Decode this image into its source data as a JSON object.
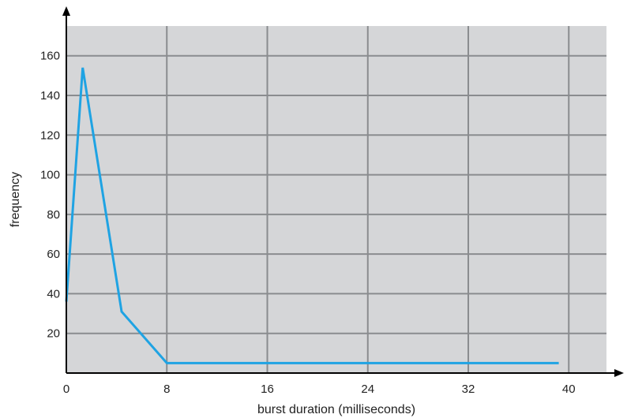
{
  "chart_data": {
    "type": "line",
    "title": "",
    "xlabel": "burst duration (milliseconds)",
    "ylabel": "frequency",
    "xlim": [
      0,
      43
    ],
    "ylim": [
      0,
      175
    ],
    "x_ticks": [
      0,
      8,
      16,
      24,
      32,
      40
    ],
    "y_ticks": [
      20,
      40,
      60,
      80,
      100,
      120,
      140,
      160
    ],
    "grid": true,
    "legend": "none",
    "colors": {
      "line": "#1fa3e3",
      "plot_bg": "#d5d6d8",
      "grid": "#8a8c8f",
      "axis": "#000000"
    },
    "series": [
      {
        "x": [
          0,
          1.3,
          4.4,
          8,
          39.2
        ],
        "y": [
          36,
          154,
          31,
          5,
          5
        ]
      }
    ]
  }
}
